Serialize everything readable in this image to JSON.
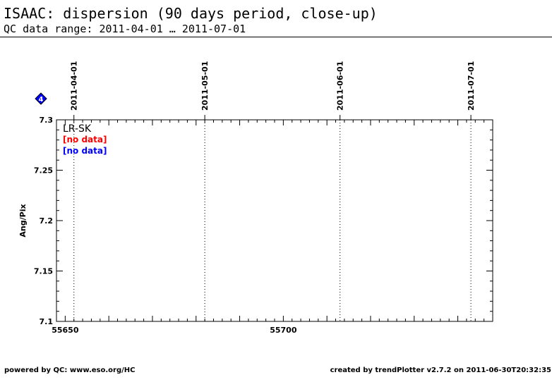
{
  "header": {
    "title": "ISAAC: dispersion (90 days period, close-up)",
    "subtitle": "QC data range: 2011-04-01 … 2011-07-01"
  },
  "footer": {
    "left": "powered by QC: www.eso.org/HC",
    "right": "created by trendPlotter v2.7.2 on 2011-06-30T20:32:35"
  },
  "chart_data": {
    "type": "scatter",
    "title": "",
    "xlabel": "",
    "ylabel": "Ang/Pix",
    "xlim": [
      55648,
      55748
    ],
    "ylim": [
      7.1,
      7.3
    ],
    "x_ticks": [
      55650,
      55700
    ],
    "y_ticks": [
      7.1,
      7.15,
      7.2,
      7.25,
      7.3
    ],
    "y_tick_labels": [
      "7.1",
      "7.15",
      "7.2",
      "7.25",
      "7.3"
    ],
    "date_markers": [
      {
        "label": "2011-04-01",
        "mjd": 55652
      },
      {
        "label": "2011-05-01",
        "mjd": 55682
      },
      {
        "label": "2011-06-01",
        "mjd": 55713
      },
      {
        "label": "2011-07-01",
        "mjd": 55743
      }
    ],
    "panel_label": "LR-SK",
    "legend": [
      {
        "text": "[no data]",
        "color": "#ff0000"
      },
      {
        "text": "[no data]",
        "color": "#0000ff"
      }
    ],
    "marker_badge": {
      "text": "4",
      "color": "#0000ff"
    },
    "series": [],
    "grid": false
  }
}
